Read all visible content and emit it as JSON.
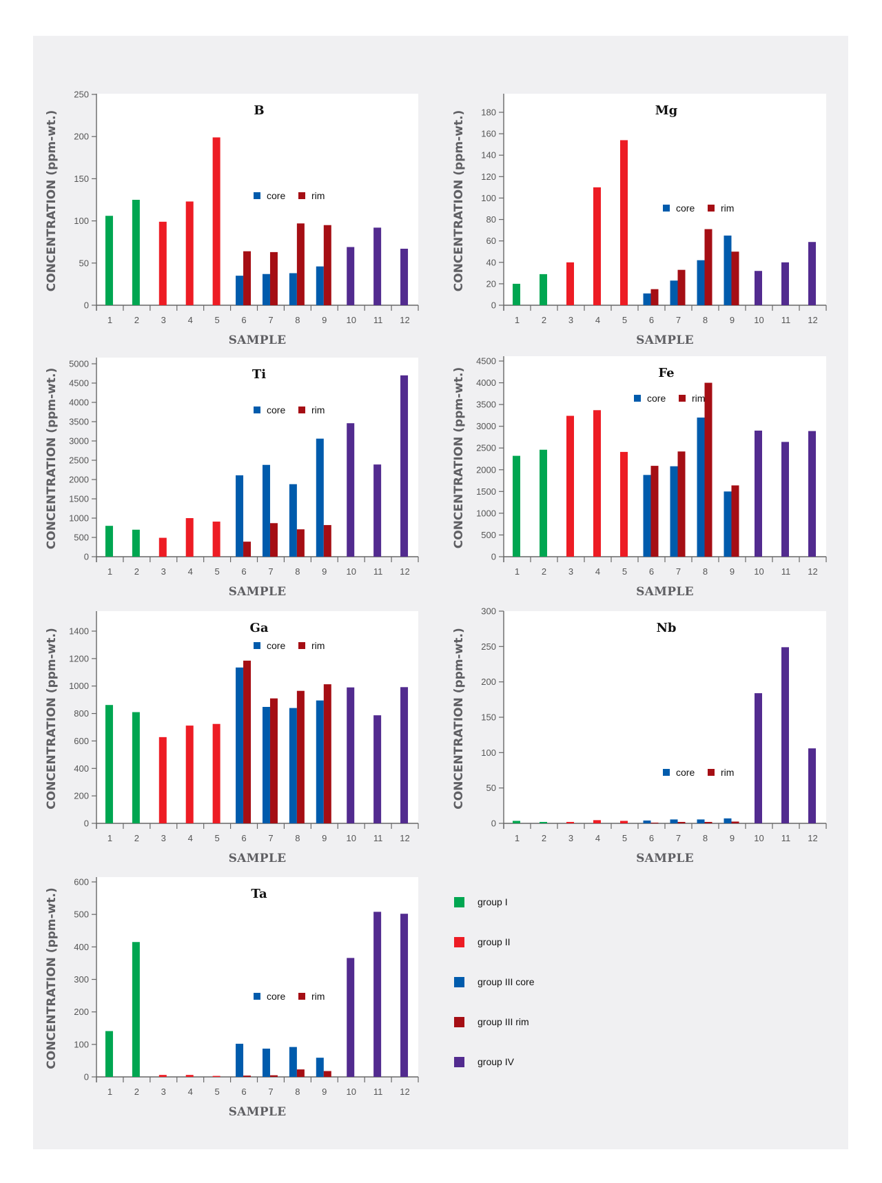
{
  "colors": {
    "group_I": "#00a651",
    "group_II": "#ed1c24",
    "group_III_core": "#005bac",
    "group_III_rim": "#a50e14",
    "group_IV": "#522b8f",
    "axis": "#666666",
    "plot_bg": "#ffffff",
    "panel_bg": "#f0f0f2"
  },
  "group_legend": [
    {
      "label": "group I",
      "color_key": "group_I"
    },
    {
      "label": "group II",
      "color_key": "group_II"
    },
    {
      "label": "group III core",
      "color_key": "group_III_core"
    },
    {
      "label": "group III rim",
      "color_key": "group_III_rim"
    },
    {
      "label": "group IV",
      "color_key": "group_IV"
    }
  ],
  "chart_data": [
    {
      "type": "bar",
      "title": "B",
      "xlabel": "SAMPLE",
      "ylabel": "CONCENTRATION (ppm-wt.)",
      "ylim": [
        0,
        250
      ],
      "yticks": [
        0,
        50,
        100,
        150,
        200,
        250
      ],
      "categories": [
        "1",
        "2",
        "3",
        "4",
        "5",
        "6",
        "7",
        "8",
        "9",
        "10",
        "11",
        "12"
      ],
      "groups": [
        "group_I",
        "group_I",
        "group_II",
        "group_II",
        "group_II",
        "group_III",
        "group_III",
        "group_III",
        "group_III",
        "group_IV",
        "group_IV",
        "group_IV"
      ],
      "values": [
        106,
        125,
        99,
        123,
        199,
        null,
        null,
        null,
        null,
        69,
        92,
        67
      ],
      "core": [
        null,
        null,
        null,
        null,
        null,
        35,
        37,
        38,
        46,
        null,
        null,
        null
      ],
      "rim": [
        null,
        null,
        null,
        null,
        null,
        64,
        63,
        97,
        95,
        null,
        null,
        null
      ],
      "legend": {
        "core": "core",
        "rim": "rim"
      }
    },
    {
      "type": "bar",
      "title": "Mg",
      "xlabel": "SAMPLE",
      "ylabel": "CONCENTRATION (ppm-wt.)",
      "ylim": [
        0,
        197
      ],
      "yticks": [
        0,
        20,
        40,
        60,
        80,
        100,
        120,
        140,
        160,
        180
      ],
      "categories": [
        "1",
        "2",
        "3",
        "4",
        "5",
        "6",
        "7",
        "8",
        "9",
        "10",
        "11",
        "12"
      ],
      "groups": [
        "group_I",
        "group_I",
        "group_II",
        "group_II",
        "group_II",
        "group_III",
        "group_III",
        "group_III",
        "group_III",
        "group_IV",
        "group_IV",
        "group_IV"
      ],
      "values": [
        20,
        29,
        40,
        110,
        154,
        null,
        null,
        null,
        null,
        32,
        40,
        59
      ],
      "core": [
        null,
        null,
        null,
        null,
        null,
        11,
        23,
        42,
        65,
        null,
        null,
        null
      ],
      "rim": [
        null,
        null,
        null,
        null,
        null,
        15,
        33,
        71,
        50,
        null,
        null,
        null
      ],
      "legend": {
        "core": "core",
        "rim": "rim"
      }
    },
    {
      "type": "bar",
      "title": "Ti",
      "xlabel": "SAMPLE",
      "ylabel": "CONCENTRATION (ppm-wt.)",
      "ylim": [
        0,
        5150
      ],
      "yticks": [
        0,
        500,
        1000,
        1500,
        2000,
        2500,
        3000,
        3500,
        4000,
        4500,
        5000
      ],
      "categories": [
        "1",
        "2",
        "3",
        "4",
        "5",
        "6",
        "7",
        "8",
        "9",
        "10",
        "11",
        "12"
      ],
      "groups": [
        "group_I",
        "group_I",
        "group_II",
        "group_II",
        "group_II",
        "group_III",
        "group_III",
        "group_III",
        "group_III",
        "group_IV",
        "group_IV",
        "group_IV"
      ],
      "values": [
        800,
        700,
        490,
        1000,
        910,
        null,
        null,
        null,
        null,
        3460,
        2390,
        4700
      ],
      "core": [
        null,
        null,
        null,
        null,
        null,
        2110,
        2380,
        1880,
        3060,
        null,
        null,
        null
      ],
      "rim": [
        null,
        null,
        null,
        null,
        null,
        390,
        870,
        710,
        820,
        null,
        null,
        null
      ],
      "legend": {
        "core": "core",
        "rim": "rim"
      }
    },
    {
      "type": "bar",
      "title": "Fe",
      "xlabel": "SAMPLE",
      "ylabel": "CONCENTRATION (ppm-wt.)",
      "ylim": [
        0,
        4620
      ],
      "yticks": [
        0,
        500,
        1000,
        1500,
        2000,
        2500,
        3000,
        3500,
        4000,
        4500
      ],
      "categories": [
        "1",
        "2",
        "3",
        "4",
        "5",
        "6",
        "7",
        "8",
        "9",
        "10",
        "11",
        "12"
      ],
      "groups": [
        "group_I",
        "group_I",
        "group_II",
        "group_II",
        "group_II",
        "group_III",
        "group_III",
        "group_III",
        "group_III",
        "group_IV",
        "group_IV",
        "group_IV"
      ],
      "values": [
        2320,
        2460,
        3240,
        3370,
        2410,
        null,
        null,
        null,
        null,
        2900,
        2640,
        2890
      ],
      "core": [
        null,
        null,
        null,
        null,
        null,
        1880,
        2080,
        3200,
        1500,
        null,
        null,
        null
      ],
      "rim": [
        null,
        null,
        null,
        null,
        null,
        2090,
        2420,
        4000,
        1640,
        null,
        null,
        null
      ],
      "legend": {
        "core": "core",
        "rim": "rim"
      }
    },
    {
      "type": "bar",
      "title": "Ga",
      "xlabel": "SAMPLE",
      "ylabel": "CONCENTRATION (ppm-wt.)",
      "ylim": [
        0,
        1545
      ],
      "yticks": [
        0,
        200,
        400,
        600,
        800,
        1000,
        1200,
        1400
      ],
      "categories": [
        "1",
        "2",
        "3",
        "4",
        "5",
        "6",
        "7",
        "8",
        "9",
        "10",
        "11",
        "12"
      ],
      "groups": [
        "group_I",
        "group_I",
        "group_II",
        "group_II",
        "group_II",
        "group_III",
        "group_III",
        "group_III",
        "group_III",
        "group_IV",
        "group_IV",
        "group_IV"
      ],
      "values": [
        862,
        810,
        628,
        712,
        724,
        null,
        null,
        null,
        null,
        990,
        787,
        992
      ],
      "core": [
        null,
        null,
        null,
        null,
        null,
        1135,
        848,
        840,
        895,
        null,
        null,
        null
      ],
      "rim": [
        null,
        null,
        null,
        null,
        null,
        1185,
        910,
        965,
        1013,
        null,
        null,
        null
      ],
      "legend": {
        "core": "core",
        "rim": "rim"
      }
    },
    {
      "type": "bar",
      "title": "Nb",
      "xlabel": "SAMPLE",
      "ylabel": "CONCENTRATION (ppm-wt.)",
      "ylim": [
        0,
        300
      ],
      "yticks": [
        0,
        50,
        100,
        150,
        200,
        250,
        300
      ],
      "categories": [
        "1",
        "2",
        "3",
        "4",
        "5",
        "6",
        "7",
        "8",
        "9",
        "10",
        "11",
        "12"
      ],
      "groups": [
        "group_I",
        "group_I",
        "group_II",
        "group_II",
        "group_II",
        "group_III",
        "group_III",
        "group_III",
        "group_III",
        "group_IV",
        "group_IV",
        "group_IV"
      ],
      "values": [
        3.5,
        2,
        2,
        4.5,
        3.5,
        null,
        null,
        null,
        null,
        184,
        249,
        106
      ],
      "core": [
        null,
        null,
        null,
        null,
        null,
        4,
        5.5,
        5.5,
        7,
        null,
        null,
        null
      ],
      "rim": [
        null,
        null,
        null,
        null,
        null,
        1,
        2,
        2,
        2.5,
        null,
        null,
        null
      ],
      "legend": {
        "core": "core",
        "rim": "rim"
      }
    },
    {
      "type": "bar",
      "title": "Ta",
      "xlabel": "SAMPLE",
      "ylabel": "CONCENTRATION (ppm-wt.)",
      "ylim": [
        0,
        610
      ],
      "yticks": [
        0,
        100,
        200,
        300,
        400,
        500,
        600
      ],
      "categories": [
        "1",
        "2",
        "3",
        "4",
        "5",
        "6",
        "7",
        "8",
        "9",
        "10",
        "11",
        "12"
      ],
      "groups": [
        "group_I",
        "group_I",
        "group_II",
        "group_II",
        "group_II",
        "group_III",
        "group_III",
        "group_III",
        "group_III",
        "group_IV",
        "group_IV",
        "group_IV"
      ],
      "values": [
        141,
        415,
        6,
        6,
        3,
        null,
        null,
        null,
        null,
        366,
        508,
        502
      ],
      "core": [
        null,
        null,
        null,
        null,
        null,
        102,
        87,
        92,
        59,
        null,
        null,
        null
      ],
      "rim": [
        null,
        null,
        null,
        null,
        null,
        4,
        5,
        23,
        18,
        null,
        null,
        null
      ],
      "legend": {
        "core": "core",
        "rim": "rim"
      }
    }
  ]
}
